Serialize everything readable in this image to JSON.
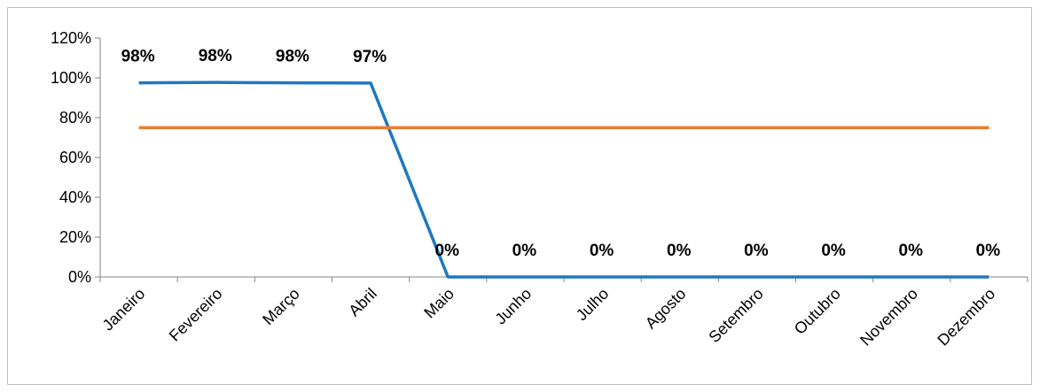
{
  "chart_data": {
    "type": "line",
    "title": "",
    "xlabel": "",
    "ylabel": "",
    "categories": [
      "Janeiro",
      "Fevereiro",
      "Março",
      "Abril",
      "Maio",
      "Junho",
      "Julho",
      "Agosto",
      "Setembro",
      "Outubro",
      "Novembro",
      "Dezembro"
    ],
    "ylim": [
      0,
      1.2
    ],
    "yticks": [
      "0%",
      "20%",
      "40%",
      "60%",
      "80%",
      "100%",
      "120%"
    ],
    "grid": false,
    "legend": "none",
    "series": [
      {
        "values": [
          0.975,
          0.977,
          0.975,
          0.974,
          0,
          0,
          0,
          0,
          0,
          0,
          0,
          0
        ],
        "labels": [
          "98%",
          "98%",
          "98%",
          "97%",
          "0%",
          "0%",
          "0%",
          "0%",
          "0%",
          "0%",
          "0%",
          "0%"
        ],
        "color": "#1f77c0"
      },
      {
        "values": [
          0.75,
          0.75,
          0.75,
          0.75,
          0.75,
          0.75,
          0.75,
          0.75,
          0.75,
          0.75,
          0.75,
          0.75
        ],
        "color": "#ed7d31"
      }
    ]
  }
}
